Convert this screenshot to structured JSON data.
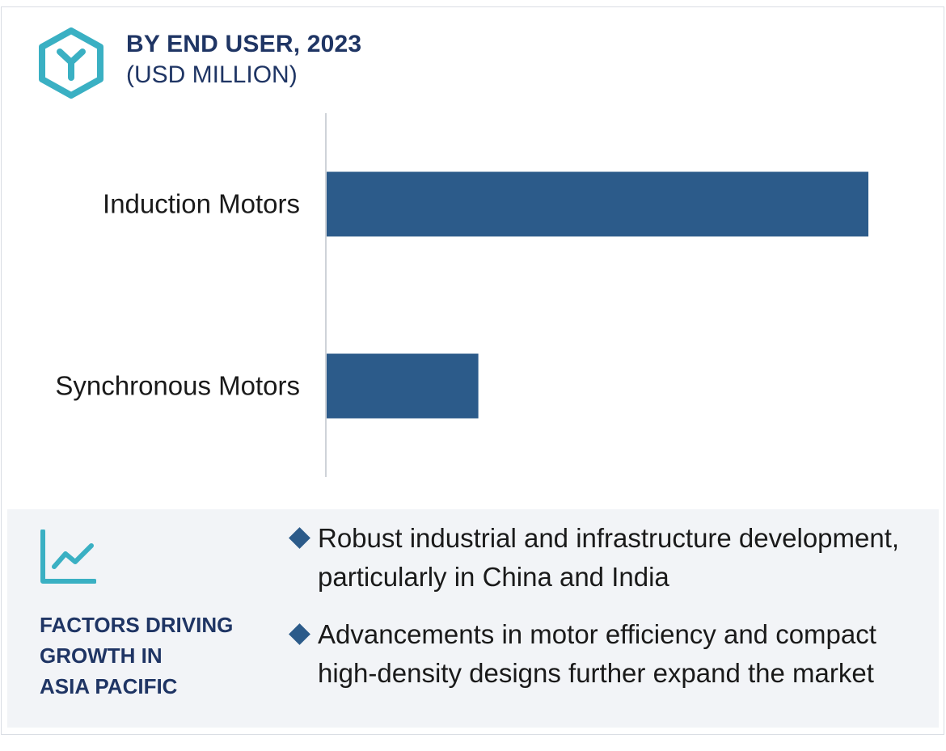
{
  "header": {
    "title": "BY END USER, 2023",
    "subtitle": "(USD MILLION)",
    "logo_icon": "hexagon-y-logo-icon"
  },
  "colors": {
    "bar": "#2c5b8a",
    "heading": "#1f3564",
    "accent": "#3ab0c3",
    "panel_bg": "#f2f4f7"
  },
  "chart_data": {
    "type": "bar",
    "orientation": "horizontal",
    "categories": [
      "Induction Motors",
      "Synchronous Motors"
    ],
    "values": [
      100,
      28
    ],
    "xlim": [
      0,
      100
    ],
    "title": "BY END USER, 2023",
    "xlabel": "",
    "ylabel": "",
    "grid": false
  },
  "factors": {
    "icon": "trend-line-chart-icon",
    "heading_lines": [
      "FACTORS DRIVING",
      "GROWTH IN",
      "ASIA PACIFIC"
    ],
    "bullets": [
      "Robust industrial and infrastructure development, particularly in China and India",
      "Advancements in motor efficiency and compact high-density designs further expand the market"
    ]
  }
}
